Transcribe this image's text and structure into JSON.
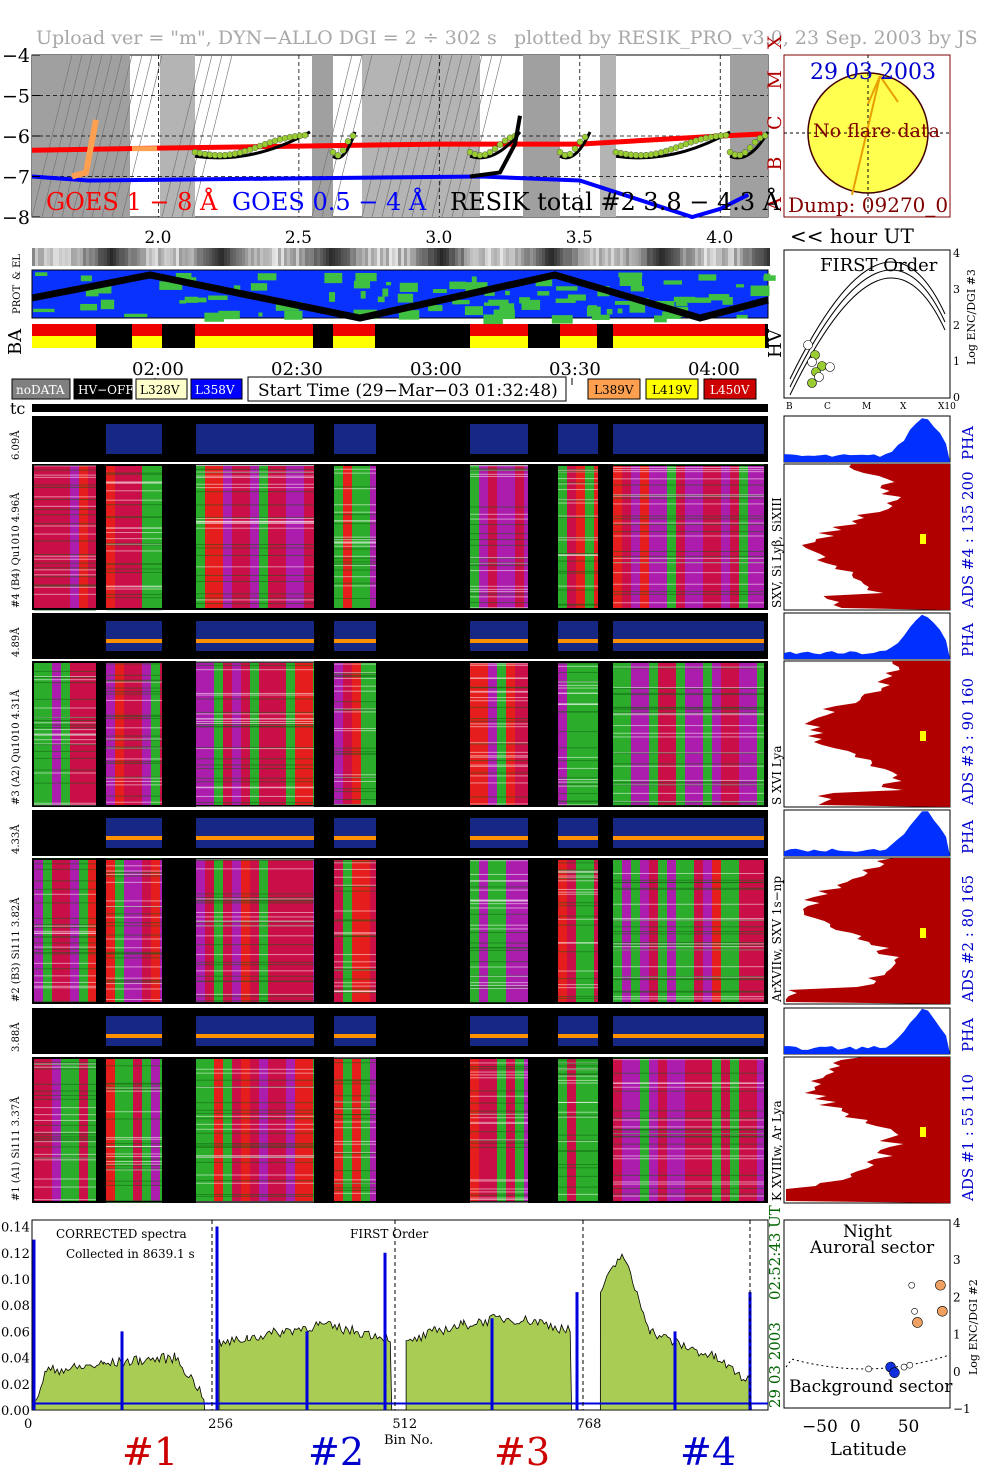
{
  "header": {
    "upload": "Upload ver = \"m\", DYN−ALLO DGI =  2 ÷ 302 s",
    "plotted": "plotted by RESIK_PRO_v3.0, 23 Sep. 2003 by JS"
  },
  "goes": {
    "y_ticks": [
      "−4",
      "−5",
      "−6",
      "−7",
      "−8"
    ],
    "classes": [
      "X",
      "M",
      "C",
      "B",
      "A"
    ],
    "x_ticks": [
      "2.0",
      "2.5",
      "3.0",
      "3.5",
      "4.0"
    ],
    "label_18": "GOES 1 − 8 Å",
    "label_054": "GOES 0.5 − 4 Å",
    "label_resik": "RESIK total #2  3.8 − 4.3 Å",
    "colors": {
      "goes18": "#ff0000",
      "goes054": "#0000ff",
      "resik": "#000000",
      "points": "#9acd32",
      "orange": "#ffa050"
    },
    "series": [
      {
        "name": "GOES 1 − 8 Å",
        "x": [
          1.55,
          2.0,
          2.5,
          3.0,
          3.5,
          4.0,
          4.15
        ],
        "y": [
          -6.35,
          -6.3,
          -6.25,
          -6.2,
          -6.2,
          -6.0,
          -5.95
        ]
      },
      {
        "name": "GOES 0.5 − 4 Å",
        "x": [
          1.55,
          1.75,
          3.15,
          3.5,
          3.9,
          4.0,
          4.1
        ],
        "y": [
          -7.0,
          -7.1,
          -7.0,
          -7.1,
          -8.0,
          -7.8,
          -7.45
        ]
      }
    ]
  },
  "sun": {
    "date": "29 03 2003",
    "note": "No flare data",
    "dump": "Dump: 09270_0",
    "hour_label": "<< hour UT"
  },
  "orbit": {
    "side_labels": [
      "PROT",
      "& EL"
    ],
    "ba_label": "BA",
    "hv_label": "HV"
  },
  "time_axis": {
    "ticks": [
      "02:00",
      "02:30",
      "03:00",
      "03:30",
      "04:00"
    ]
  },
  "legend": {
    "items": [
      {
        "label": "noDATA",
        "bg": "#808080",
        "fg": "#ffffff"
      },
      {
        "label": "HV−OFF",
        "bg": "#000000",
        "fg": "#ffffff"
      },
      {
        "label": "L328V",
        "bg": "#ffffcc",
        "fg": "#000000"
      },
      {
        "label": "L358V",
        "bg": "#0000ff",
        "fg": "#ffffff"
      }
    ],
    "start_time": "Start Time (29−Mar−03 01:32:48)",
    "items_right": [
      {
        "label": "L389V",
        "bg": "#ffa050",
        "fg": "#000000"
      },
      {
        "label": "L419V",
        "bg": "#ffff00",
        "fg": "#000000"
      },
      {
        "label": "L450V",
        "bg": "#cc0000",
        "fg": "#ffffff"
      }
    ],
    "tc": "tc"
  },
  "first_order": {
    "title": "FIRST Order",
    "y_axis": "Log ENC/DGI #3",
    "y_ticks": [
      "4",
      "3",
      "2",
      "1",
      "0"
    ],
    "x_ticks": [
      "B",
      "C",
      "M",
      "X",
      "X10"
    ]
  },
  "channels": [
    {
      "pha_range": "6.09Å",
      "label": "#4 (B4) Qu1010 4.96Å",
      "lines": "SXV, Si Lyβ, SiXIII",
      "ads": "ADS #4 :   135 200",
      "pha": "PHA"
    },
    {
      "pha_range": "4.89Å",
      "label": "#3 (A2) Qu1010 4.31Å",
      "lines": "S XVI Lya",
      "ads": "ADS #3 :   90 160",
      "pha": "PHA"
    },
    {
      "pha_range": "4.33Å",
      "label": "#2 (B3) Si111 3.82Å",
      "lines": "ArXVIIw, SXV 1s−np",
      "ads": "ADS #2 :   80 165",
      "pha": "PHA"
    },
    {
      "pha_range": "3.88Å",
      "label": "#1 (A1) Si111 3.37Å",
      "lines": "K XVIIIw, Ar Lya",
      "ads": "ADS #1 :   55 110",
      "pha": "PHA"
    }
  ],
  "spectrum": {
    "title_left": "CORRECTED spectra",
    "collected": "Collected in  8639.1 s",
    "title_mid": "FIRST Order",
    "time_right": "02:52:43 UT",
    "date_right": "29 03 2003",
    "y_ticks": [
      "0.14",
      "0.12",
      "0.10",
      "0.08",
      "0.06",
      "0.04",
      "0.02",
      "0.00"
    ],
    "x_ticks": [
      "0",
      "256",
      "512",
      "768"
    ],
    "xlabel": "Bin No.",
    "channel_labels": [
      {
        "text": "#1",
        "color": "#cc0000"
      },
      {
        "text": "#2",
        "color": "#0000cc"
      },
      {
        "text": "#3",
        "color": "#cc0000"
      },
      {
        "text": "#4",
        "color": "#0000cc"
      }
    ]
  },
  "latitude_plot": {
    "title1": "Night",
    "title2": "Auroral sector",
    "bottom": "Background sector",
    "xlabel": "Latitude",
    "ylabel": "Log ENC/DGI #2",
    "x_ticks": [
      "−50",
      "0",
      "50"
    ],
    "y_ticks": [
      "4",
      "3",
      "2",
      "1",
      "0",
      "−1"
    ]
  },
  "chart_data": {
    "type": "line",
    "title": "",
    "xlabel": "Bin No.",
    "ylabel": "",
    "ylim": [
      0,
      0.14
    ],
    "xlim": [
      0,
      1023
    ],
    "segments": [
      {
        "name": "#1",
        "x": [
          0,
          20,
          60,
          100,
          150,
          200,
          240
        ],
        "y": [
          0.0,
          0.03,
          0.032,
          0.035,
          0.038,
          0.04,
          0.01
        ]
      },
      {
        "name": "#2",
        "x": [
          260,
          300,
          350,
          400,
          450,
          500
        ],
        "y": [
          0.05,
          0.055,
          0.06,
          0.065,
          0.06,
          0.055
        ]
      },
      {
        "name": "#3",
        "x": [
          520,
          560,
          600,
          650,
          700,
          750
        ],
        "y": [
          0.05,
          0.06,
          0.065,
          0.07,
          0.068,
          0.06
        ]
      },
      {
        "name": "#4",
        "x": [
          790,
          820,
          860,
          900,
          950,
          1000
        ],
        "y": [
          0.09,
          0.12,
          0.06,
          0.05,
          0.04,
          0.02
        ]
      }
    ]
  }
}
